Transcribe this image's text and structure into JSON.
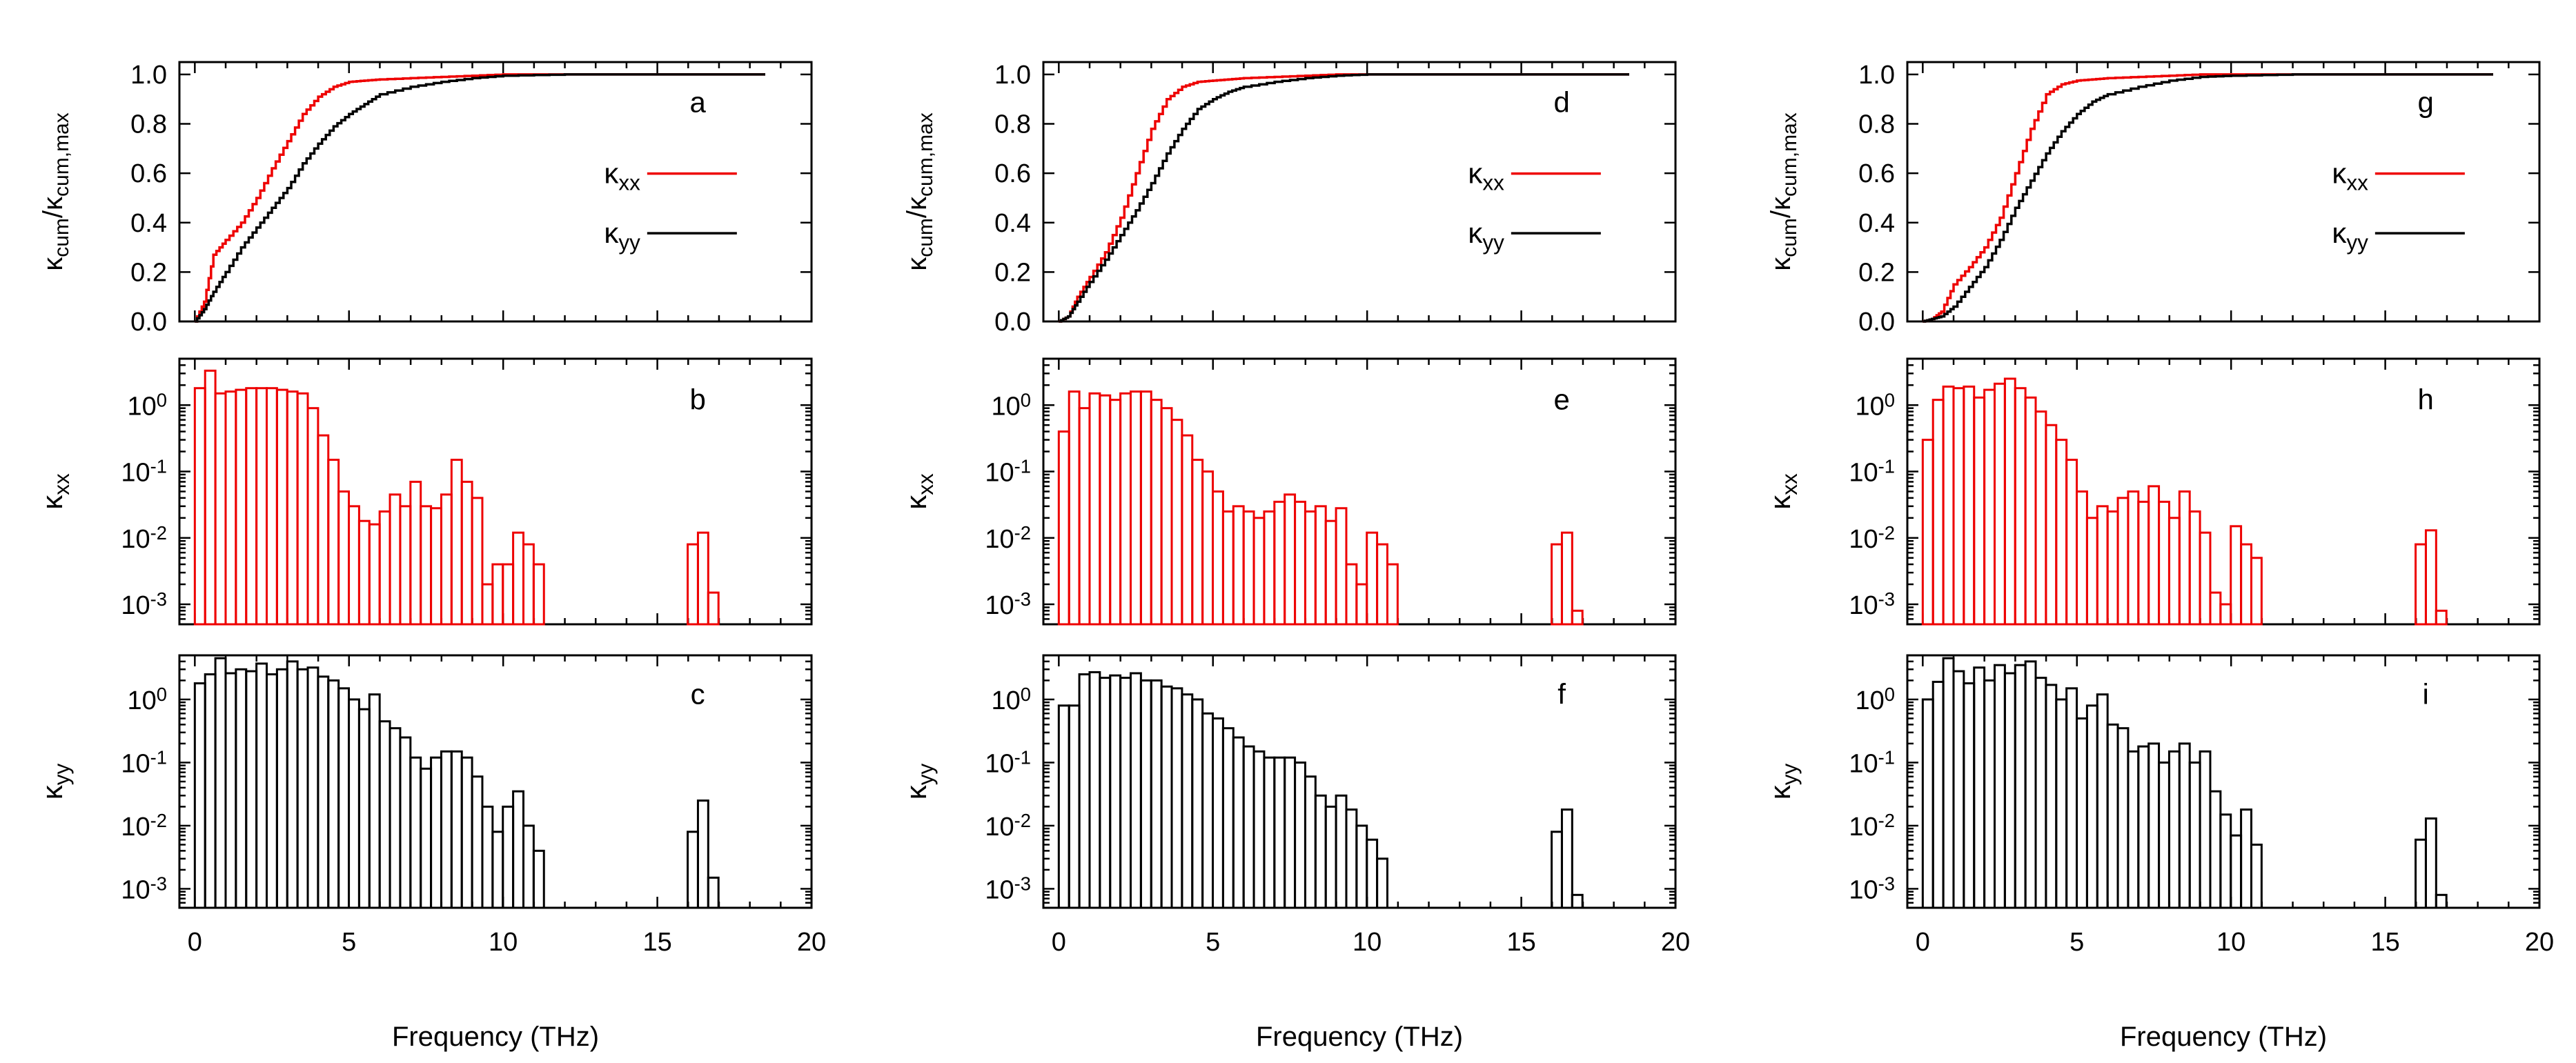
{
  "figure": {
    "xlabel": "Frequency (THz)",
    "xticks": [
      "0",
      "5",
      "10",
      "15",
      "20"
    ],
    "colors": {
      "xx": "#ee0000",
      "yy": "#000000"
    }
  },
  "chart_data": [
    {
      "type": "line",
      "panel": "a",
      "column": 1,
      "ylabel_main": "κ",
      "ylabel_sub": "cum",
      "ylabel_sep": "/",
      "ylabel_main2": "κ",
      "ylabel_sub2": "cum,max",
      "ylim": [
        0,
        1.05
      ],
      "xlim": [
        -0.5,
        20
      ],
      "yticks": [
        "0.0",
        "0.2",
        "0.4",
        "0.6",
        "0.8",
        "1.0"
      ],
      "legend": [
        {
          "main": "κ",
          "sub": "xx",
          "color": "#ee0000"
        },
        {
          "main": "κ",
          "sub": "yy",
          "color": "#000000"
        }
      ],
      "series": [
        {
          "name": "κxx",
          "x": [
            0,
            0.3,
            0.6,
            1.0,
            1.5,
            2.0,
            2.5,
            3.0,
            3.5,
            4.0,
            4.5,
            5.0,
            5.5,
            6.0,
            7.0,
            8.0,
            9.0,
            10.0,
            12.0,
            18.5
          ],
          "y": [
            0,
            0.08,
            0.27,
            0.33,
            0.4,
            0.5,
            0.62,
            0.73,
            0.84,
            0.91,
            0.95,
            0.97,
            0.975,
            0.98,
            0.985,
            0.99,
            0.995,
            1.0,
            1.0,
            1.0
          ]
        },
        {
          "name": "κyy",
          "x": [
            0,
            0.3,
            0.6,
            1.0,
            1.5,
            2.0,
            2.5,
            3.0,
            3.5,
            4.0,
            4.5,
            5.0,
            5.5,
            6.0,
            7.0,
            8.0,
            9.0,
            10.0,
            12.0,
            18.5
          ],
          "y": [
            0,
            0.05,
            0.12,
            0.2,
            0.3,
            0.38,
            0.46,
            0.54,
            0.64,
            0.72,
            0.79,
            0.84,
            0.88,
            0.92,
            0.95,
            0.97,
            0.985,
            0.995,
            1.0,
            1.0
          ]
        }
      ]
    },
    {
      "type": "histogram",
      "panel": "b",
      "column": 1,
      "color": "#ee0000",
      "ylabel_main": "κ",
      "ylabel_sub": "xx",
      "log": true,
      "ylim": [
        0.0005,
        5
      ],
      "xlim": [
        -0.5,
        20
      ],
      "yticks": [
        {
          "base": "10",
          "exp": "0",
          "v": 1
        },
        {
          "base": "10",
          "exp": "-1",
          "v": 0.1
        },
        {
          "base": "10",
          "exp": "-2",
          "v": 0.01
        },
        {
          "base": "10",
          "exp": "-3",
          "v": 0.001
        }
      ],
      "bin_width": 0.333,
      "x0": 0,
      "values": [
        1.8,
        3.3,
        1.5,
        1.6,
        1.7,
        1.8,
        1.8,
        1.8,
        1.7,
        1.6,
        1.5,
        0.9,
        0.35,
        0.15,
        0.05,
        0.03,
        0.018,
        0.016,
        0.025,
        0.045,
        0.03,
        0.07,
        0.03,
        0.028,
        0.045,
        0.15,
        0.07,
        0.04,
        0.002,
        0.004,
        0.004,
        0.012,
        0.008,
        0.004,
        null,
        null,
        null,
        null,
        null,
        null,
        null,
        null,
        null,
        null,
        null,
        null,
        null,
        null,
        0.008,
        0.012,
        0.0015
      ]
    },
    {
      "type": "histogram",
      "panel": "c",
      "column": 1,
      "color": "#000000",
      "ylabel_main": "κ",
      "ylabel_sub": "yy",
      "log": true,
      "ylim": [
        0.0005,
        5
      ],
      "xlim": [
        -0.5,
        20
      ],
      "yticks": [
        {
          "base": "10",
          "exp": "0",
          "v": 1
        },
        {
          "base": "10",
          "exp": "-1",
          "v": 0.1
        },
        {
          "base": "10",
          "exp": "-2",
          "v": 0.01
        },
        {
          "base": "10",
          "exp": "-3",
          "v": 0.001
        }
      ],
      "bin_width": 0.333,
      "x0": 0,
      "values": [
        1.8,
        2.5,
        4.5,
        2.6,
        3.0,
        2.8,
        3.7,
        2.5,
        3.0,
        4.0,
        3.0,
        3.2,
        2.3,
        2.0,
        1.5,
        1.0,
        0.7,
        1.2,
        0.45,
        0.35,
        0.25,
        0.12,
        0.08,
        0.12,
        0.15,
        0.15,
        0.12,
        0.06,
        0.02,
        0.008,
        0.02,
        0.035,
        0.01,
        0.004,
        null,
        null,
        null,
        null,
        null,
        null,
        null,
        null,
        null,
        null,
        null,
        null,
        null,
        null,
        0.008,
        0.025,
        0.0015
      ]
    },
    {
      "type": "line",
      "panel": "d",
      "column": 2,
      "ylabel_main": "κ",
      "ylabel_sub": "cum",
      "ylabel_sep": "/",
      "ylabel_main2": "κ",
      "ylabel_sub2": "cum,max",
      "ylim": [
        0,
        1.05
      ],
      "xlim": [
        -0.5,
        20
      ],
      "yticks": [
        "0.0",
        "0.2",
        "0.4",
        "0.6",
        "0.8",
        "1.0"
      ],
      "legend": [
        {
          "main": "κ",
          "sub": "xx",
          "color": "#ee0000"
        },
        {
          "main": "κ",
          "sub": "yy",
          "color": "#000000"
        }
      ],
      "series": [
        {
          "name": "κxx",
          "x": [
            0,
            0.3,
            0.6,
            1.0,
            1.5,
            2.0,
            2.5,
            3.0,
            3.5,
            4.0,
            4.5,
            5.0,
            5.5,
            6.0,
            7.0,
            8.0,
            9.0,
            10.0,
            12.0,
            18.5
          ],
          "y": [
            0,
            0.02,
            0.1,
            0.18,
            0.28,
            0.42,
            0.6,
            0.78,
            0.9,
            0.95,
            0.97,
            0.975,
            0.98,
            0.985,
            0.99,
            0.995,
            1.0,
            1.0,
            1.0,
            1.0
          ]
        },
        {
          "name": "κyy",
          "x": [
            0,
            0.3,
            0.6,
            1.0,
            1.5,
            2.0,
            2.5,
            3.0,
            3.5,
            4.0,
            4.5,
            5.0,
            5.5,
            6.0,
            7.0,
            8.0,
            9.0,
            10.0,
            12.0,
            18.5
          ],
          "y": [
            0,
            0.02,
            0.08,
            0.16,
            0.25,
            0.35,
            0.45,
            0.56,
            0.68,
            0.78,
            0.86,
            0.9,
            0.93,
            0.95,
            0.97,
            0.985,
            0.995,
            1.0,
            1.0,
            1.0
          ]
        }
      ]
    },
    {
      "type": "histogram",
      "panel": "e",
      "column": 2,
      "color": "#ee0000",
      "ylabel_main": "κ",
      "ylabel_sub": "xx",
      "log": true,
      "ylim": [
        0.0005,
        5
      ],
      "xlim": [
        -0.5,
        20
      ],
      "yticks": [
        {
          "base": "10",
          "exp": "0",
          "v": 1
        },
        {
          "base": "10",
          "exp": "-1",
          "v": 0.1
        },
        {
          "base": "10",
          "exp": "-2",
          "v": 0.01
        },
        {
          "base": "10",
          "exp": "-3",
          "v": 0.001
        }
      ],
      "bin_width": 0.333,
      "x0": 0,
      "values": [
        0.4,
        1.6,
        0.9,
        1.5,
        1.4,
        1.2,
        1.5,
        1.6,
        1.6,
        1.2,
        0.9,
        0.6,
        0.35,
        0.15,
        0.1,
        0.05,
        0.025,
        0.03,
        0.025,
        0.02,
        0.025,
        0.035,
        0.045,
        0.035,
        0.025,
        0.03,
        0.018,
        0.028,
        0.004,
        0.002,
        0.012,
        0.008,
        0.004,
        null,
        null,
        null,
        null,
        null,
        null,
        null,
        null,
        null,
        null,
        null,
        null,
        null,
        null,
        null,
        0.008,
        0.012,
        0.0008
      ]
    },
    {
      "type": "histogram",
      "panel": "f",
      "column": 2,
      "color": "#000000",
      "ylabel_main": "κ",
      "ylabel_sub": "yy",
      "log": true,
      "ylim": [
        0.0005,
        5
      ],
      "xlim": [
        -0.5,
        20
      ],
      "yticks": [
        {
          "base": "10",
          "exp": "0",
          "v": 1
        },
        {
          "base": "10",
          "exp": "-1",
          "v": 0.1
        },
        {
          "base": "10",
          "exp": "-2",
          "v": 0.01
        },
        {
          "base": "10",
          "exp": "-3",
          "v": 0.001
        }
      ],
      "bin_width": 0.333,
      "x0": 0,
      "values": [
        0.8,
        0.8,
        2.5,
        2.7,
        2.2,
        2.4,
        2.2,
        2.6,
        2.0,
        2.0,
        1.6,
        1.5,
        1.2,
        1.0,
        0.6,
        0.5,
        0.35,
        0.25,
        0.18,
        0.15,
        0.12,
        0.12,
        0.12,
        0.1,
        0.06,
        0.03,
        0.02,
        0.03,
        0.018,
        0.01,
        0.006,
        0.003,
        null,
        null,
        null,
        null,
        null,
        null,
        null,
        null,
        null,
        null,
        null,
        null,
        null,
        null,
        null,
        null,
        0.008,
        0.018,
        0.0008
      ]
    },
    {
      "type": "line",
      "panel": "g",
      "column": 3,
      "ylabel_main": "κ",
      "ylabel_sub": "cum",
      "ylabel_sep": "/",
      "ylabel_main2": "κ",
      "ylabel_sub2": "cum,max",
      "ylim": [
        0,
        1.05
      ],
      "xlim": [
        -0.5,
        20
      ],
      "yticks": [
        "0.0",
        "0.2",
        "0.4",
        "0.6",
        "0.8",
        "1.0"
      ],
      "legend": [
        {
          "main": "κ",
          "sub": "xx",
          "color": "#ee0000"
        },
        {
          "main": "κ",
          "sub": "yy",
          "color": "#000000"
        }
      ],
      "series": [
        {
          "name": "κxx",
          "x": [
            0,
            0.3,
            0.6,
            1.0,
            1.5,
            2.0,
            2.5,
            3.0,
            3.5,
            4.0,
            4.5,
            5.0,
            5.5,
            6.0,
            7.0,
            8.0,
            9.0,
            10.0,
            12.0,
            18.5
          ],
          "y": [
            0,
            0.01,
            0.04,
            0.15,
            0.22,
            0.3,
            0.42,
            0.6,
            0.78,
            0.92,
            0.96,
            0.975,
            0.98,
            0.985,
            0.99,
            0.995,
            1.0,
            1.0,
            1.0,
            1.0
          ]
        },
        {
          "name": "κyy",
          "x": [
            0,
            0.3,
            0.6,
            1.0,
            1.5,
            2.0,
            2.5,
            3.0,
            3.5,
            4.0,
            4.5,
            5.0,
            5.5,
            6.0,
            7.0,
            8.0,
            9.0,
            10.0,
            12.0,
            18.5
          ],
          "y": [
            0,
            0.01,
            0.02,
            0.06,
            0.14,
            0.22,
            0.33,
            0.46,
            0.57,
            0.68,
            0.77,
            0.84,
            0.89,
            0.92,
            0.95,
            0.975,
            0.99,
            0.995,
            1.0,
            1.0
          ]
        }
      ]
    },
    {
      "type": "histogram",
      "panel": "h",
      "column": 3,
      "color": "#ee0000",
      "ylabel_main": "κ",
      "ylabel_sub": "xx",
      "log": true,
      "ylim": [
        0.0005,
        5
      ],
      "xlim": [
        -0.5,
        20
      ],
      "yticks": [
        {
          "base": "10",
          "exp": "0",
          "v": 1
        },
        {
          "base": "10",
          "exp": "-1",
          "v": 0.1
        },
        {
          "base": "10",
          "exp": "-2",
          "v": 0.01
        },
        {
          "base": "10",
          "exp": "-3",
          "v": 0.001
        }
      ],
      "bin_width": 0.333,
      "x0": 0,
      "values": [
        0.3,
        1.2,
        1.9,
        1.8,
        1.9,
        1.3,
        1.7,
        2.1,
        2.5,
        1.8,
        1.3,
        0.8,
        0.5,
        0.3,
        0.15,
        0.05,
        0.02,
        0.03,
        0.025,
        0.04,
        0.05,
        0.035,
        0.06,
        0.035,
        0.02,
        0.05,
        0.025,
        0.012,
        0.0015,
        0.001,
        0.015,
        0.008,
        0.005,
        null,
        null,
        null,
        null,
        null,
        null,
        null,
        null,
        null,
        null,
        null,
        null,
        null,
        null,
        null,
        0.008,
        0.013,
        0.0008
      ]
    },
    {
      "type": "histogram",
      "panel": "i",
      "column": 3,
      "color": "#000000",
      "ylabel_main": "κ",
      "ylabel_sub": "yy",
      "log": true,
      "ylim": [
        0.0005,
        5
      ],
      "xlim": [
        -0.5,
        20
      ],
      "yticks": [
        {
          "base": "10",
          "exp": "0",
          "v": 1
        },
        {
          "base": "10",
          "exp": "-1",
          "v": 0.1
        },
        {
          "base": "10",
          "exp": "-2",
          "v": 0.01
        },
        {
          "base": "10",
          "exp": "-3",
          "v": 0.001
        }
      ],
      "bin_width": 0.333,
      "x0": 0,
      "values": [
        1.0,
        1.9,
        4.5,
        2.8,
        1.8,
        3.2,
        2.0,
        3.5,
        2.6,
        3.5,
        4.0,
        2.2,
        1.7,
        1.0,
        1.5,
        0.5,
        0.8,
        1.2,
        0.4,
        0.35,
        0.15,
        0.18,
        0.2,
        0.1,
        0.15,
        0.2,
        0.1,
        0.15,
        0.035,
        0.015,
        0.007,
        0.018,
        0.005,
        null,
        null,
        null,
        null,
        null,
        null,
        null,
        null,
        null,
        null,
        null,
        null,
        null,
        null,
        null,
        0.006,
        0.013,
        0.0008
      ]
    }
  ],
  "panel_labels": [
    "a",
    "b",
    "c",
    "d",
    "e",
    "f",
    "g",
    "h",
    "i"
  ]
}
